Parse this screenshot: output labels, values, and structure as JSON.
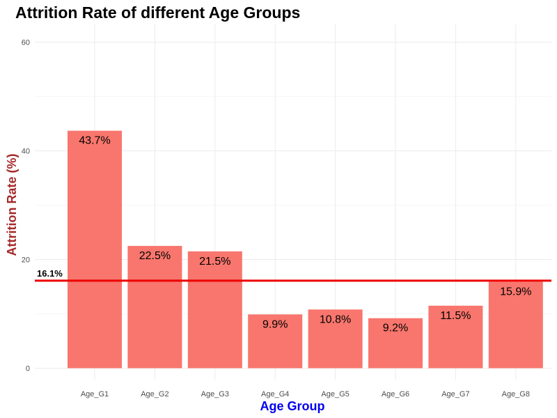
{
  "chart_data": {
    "type": "bar",
    "title": "Attrition Rate of different Age Groups",
    "xlabel": "Age Group",
    "ylabel": "Attrition Rate (%)",
    "categories": [
      "Age_G1",
      "Age_G2",
      "Age_G3",
      "Age_G4",
      "Age_G5",
      "Age_G6",
      "Age_G7",
      "Age_G8"
    ],
    "values": [
      43.7,
      22.5,
      21.5,
      9.9,
      10.8,
      9.2,
      11.5,
      15.9
    ],
    "data_labels": [
      "43.7%",
      "22.5%",
      "21.5%",
      "9.9%",
      "10.8%",
      "9.2%",
      "11.5%",
      "15.9%"
    ],
    "ylim": [
      0,
      63
    ],
    "yticks": [
      0,
      20,
      40,
      60
    ],
    "grid": true,
    "reference_line": {
      "value": 16.1,
      "label": "16.1%",
      "color": "#ee0000"
    },
    "colors": {
      "bar": "#f8766d",
      "xlabel": "#0000ee",
      "ylabel": "#a52a2a",
      "grid": "#ebebeb"
    }
  }
}
